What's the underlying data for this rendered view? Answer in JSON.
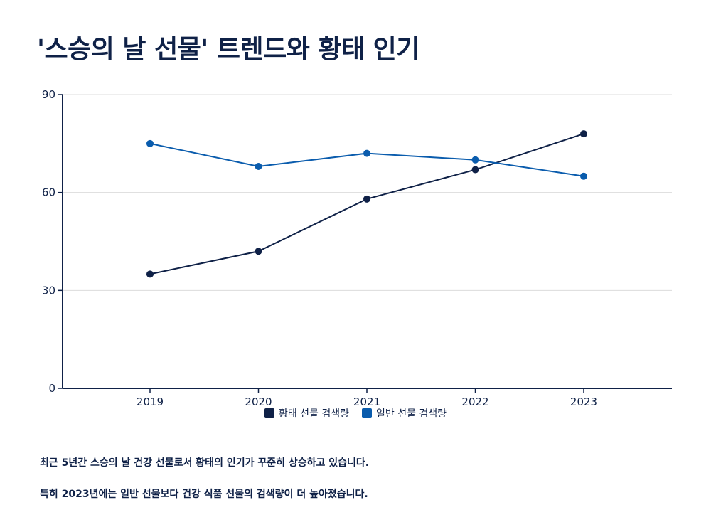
{
  "title": "'스승의 날 선물' 트렌드와 황태 인기",
  "notes": [
    "최근 5년간 스승의 날 건강 선물로서 황태의 인기가 꾸준히 상승하고 있습니다.",
    "특히 2023년에는 일반 선물보다 건강 식품 선물의 검색량이 더 높아졌습니다."
  ],
  "colors": {
    "navy": "#0f2147",
    "blue": "#0a5cad",
    "grid": "#dcdcdc"
  },
  "chart_data": {
    "type": "line",
    "title": "'스승의 날 선물' 트렌드와 황태 인기",
    "x": [
      "2019",
      "2020",
      "2021",
      "2022",
      "2023"
    ],
    "ylim": [
      0,
      90
    ],
    "yticks": [
      0,
      30,
      60,
      90
    ],
    "grid": true,
    "legend_position": "bottom",
    "series": [
      {
        "name": "황태 선물 검색량",
        "color": "#0f2147",
        "values": [
          35,
          42,
          58,
          67,
          78
        ]
      },
      {
        "name": "일반 선물 검색량",
        "color": "#0a5cad",
        "values": [
          75,
          68,
          72,
          70,
          65
        ]
      }
    ]
  }
}
